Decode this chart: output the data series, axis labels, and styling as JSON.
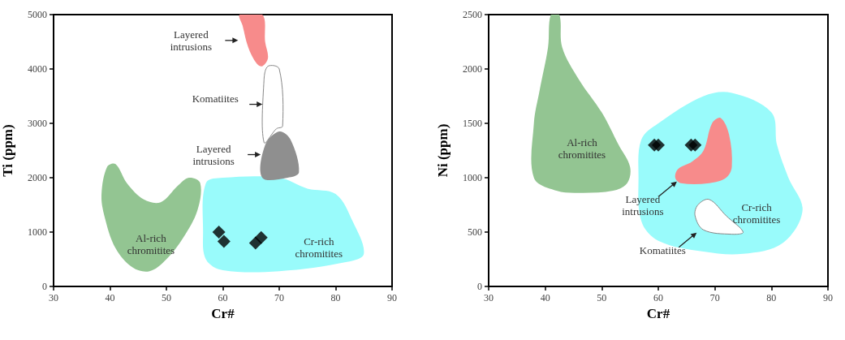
{
  "chart_data": [
    {
      "type": "scatter",
      "xlabel": "Cr#",
      "ylabel": "Ti (ppm)",
      "xlim": [
        30,
        90
      ],
      "xticks": [
        30,
        40,
        50,
        60,
        70,
        80,
        90
      ],
      "ylim": [
        0,
        5000
      ],
      "yticks": [
        0,
        1000,
        2000,
        3000,
        4000,
        5000
      ],
      "grid": false,
      "series": [
        {
          "type": "area",
          "name": "Al-rich chromitites",
          "color": "#93c592",
          "x": [
            39.5,
            41,
            43,
            46,
            49,
            52,
            54,
            56,
            55.5,
            53,
            50,
            47,
            44,
            41,
            39,
            38.5
          ],
          "values": [
            2200,
            2250,
            1900,
            1600,
            1550,
            1850,
            2000,
            1900,
            1400,
            900,
            500,
            280,
            350,
            700,
            1300,
            1700
          ]
        },
        {
          "type": "area",
          "name": "Cr-rich chromitites",
          "color": "#99fbfb",
          "x": [
            57,
            60,
            70,
            75,
            80,
            83,
            85,
            82,
            70,
            60,
            57,
            56.5
          ],
          "values": [
            1900,
            2000,
            2000,
            1800,
            1700,
            1200,
            600,
            450,
            280,
            300,
            500,
            1000
          ]
        },
        {
          "type": "area",
          "name": "Komatiites",
          "color": "#ffffff",
          "x": [
            67.3,
            67.3,
            68,
            70,
            70.6,
            69.5
          ],
          "values": [
            2650,
            3800,
            4050,
            4000,
            2950,
            2900
          ]
        },
        {
          "type": "area",
          "name": "Layered intrusions",
          "color": "#8f8f8f",
          "x": [
            67,
            67.5,
            70,
            72,
            73.5,
            71.5
          ],
          "values": [
            2000,
            2600,
            2850,
            2700,
            2100,
            2000
          ]
        },
        {
          "type": "area",
          "name": "Layered intrusions",
          "color": "#f78b8b",
          "x": [
            63,
            67,
            67.5,
            68,
            67,
            66,
            64.5,
            63.5
          ],
          "values": [
            5000,
            5000,
            4500,
            4200,
            4050,
            4100,
            4400,
            4800
          ]
        },
        {
          "color": "#000000",
          "marker": "diamond",
          "x": [
            59.3,
            60.2,
            65.8,
            66.8
          ],
          "values": [
            1000,
            830,
            800,
            900
          ]
        }
      ]
    },
    {
      "type": "scatter",
      "xlabel": "Cr#",
      "ylabel": "Ni (ppm)",
      "xlim": [
        30,
        90
      ],
      "xticks": [
        30,
        40,
        50,
        60,
        70,
        80,
        90
      ],
      "ylim": [
        0,
        2500
      ],
      "yticks": [
        0,
        500,
        1000,
        1500,
        2000,
        2500
      ],
      "grid": false,
      "series": [
        {
          "type": "area",
          "name": "Al-rich chromitites",
          "color": "#93c592",
          "x": [
            41,
            42.5,
            43,
            46,
            50,
            53,
            55,
            54.5,
            52,
            46,
            42,
            38,
            38,
            39,
            40.5
          ],
          "values": [
            2500,
            2500,
            2200,
            1900,
            1600,
            1300,
            1100,
            950,
            880,
            860,
            880,
            1000,
            1500,
            1800,
            2200
          ]
        },
        {
          "type": "area",
          "name": "Cr-rich chromitites",
          "color": "#99fbfb",
          "x": [
            57,
            60,
            68,
            73,
            80,
            81,
            83,
            85.5,
            82,
            75,
            68,
            60,
            57,
            56.5
          ],
          "values": [
            1350,
            1500,
            1750,
            1780,
            1600,
            1300,
            1000,
            700,
            400,
            300,
            320,
            420,
            600,
            1000
          ]
        },
        {
          "type": "area",
          "name": "Layered intrusions",
          "color": "#f78b8b",
          "x": [
            63,
            63.5,
            66,
            68,
            69.5,
            71,
            72.5,
            73,
            72,
            69,
            64
          ],
          "values": [
            1000,
            1080,
            1150,
            1250,
            1500,
            1550,
            1400,
            1100,
            1000,
            950,
            950
          ]
        },
        {
          "type": "area",
          "name": "Komatiites",
          "color": "#ffffff",
          "x": [
            67,
            69,
            72,
            75,
            73,
            68,
            66.5
          ],
          "values": [
            750,
            800,
            650,
            500,
            480,
            520,
            650
          ]
        },
        {
          "color": "#000000",
          "marker": "diamond",
          "x": [
            59.3,
            60,
            65.8,
            66.5
          ],
          "values": [
            1300,
            1300,
            1300,
            1300
          ]
        }
      ]
    }
  ]
}
